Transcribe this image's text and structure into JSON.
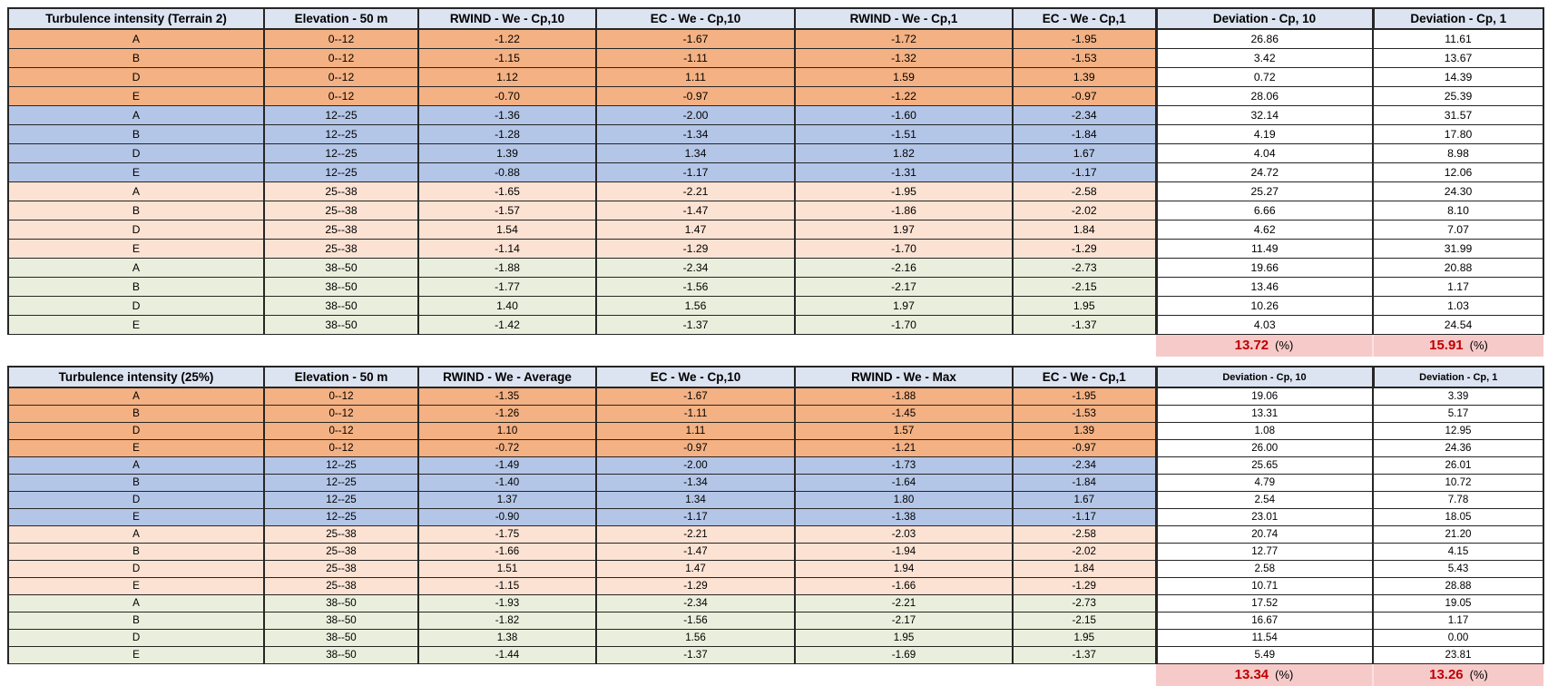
{
  "colors": {
    "header_bg": "#dce3f1",
    "group_orange": "#f4b183",
    "group_blue": "#b4c6e7",
    "group_peach": "#fbe2d3",
    "group_green": "#e9efdc",
    "total_bg": "#f7caca",
    "total_text": "#c00000",
    "border": "#262626"
  },
  "tables": [
    {
      "id": "terrain2",
      "columns": [
        "Turbulence intensity (Terrain 2)",
        "Elevation - 50 m",
        "RWIND - We - Cp,10",
        "EC - We - Cp,10",
        "RWIND - We - Cp,1",
        "EC - We - Cp,1",
        "Deviation - Cp, 10",
        "Deviation - Cp, 1"
      ],
      "rows": [
        {
          "group": "orange",
          "cells": [
            "A",
            "0--12",
            "-1.22",
            "-1.67",
            "-1.72",
            "-1.95",
            "26.86",
            "11.61"
          ]
        },
        {
          "group": "orange",
          "cells": [
            "B",
            "0--12",
            "-1.15",
            "-1.11",
            "-1.32",
            "-1.53",
            "3.42",
            "13.67"
          ]
        },
        {
          "group": "orange",
          "cells": [
            "D",
            "0--12",
            "1.12",
            "1.11",
            "1.59",
            "1.39",
            "0.72",
            "14.39"
          ]
        },
        {
          "group": "orange",
          "cells": [
            "E",
            "0--12",
            "-0.70",
            "-0.97",
            "-1.22",
            "-0.97",
            "28.06",
            "25.39"
          ]
        },
        {
          "group": "blue",
          "cells": [
            "A",
            "12--25",
            "-1.36",
            "-2.00",
            "-1.60",
            "-2.34",
            "32.14",
            "31.57"
          ]
        },
        {
          "group": "blue",
          "cells": [
            "B",
            "12--25",
            "-1.28",
            "-1.34",
            "-1.51",
            "-1.84",
            "4.19",
            "17.80"
          ]
        },
        {
          "group": "blue",
          "cells": [
            "D",
            "12--25",
            "1.39",
            "1.34",
            "1.82",
            "1.67",
            "4.04",
            "8.98"
          ]
        },
        {
          "group": "blue",
          "cells": [
            "E",
            "12--25",
            "-0.88",
            "-1.17",
            "-1.31",
            "-1.17",
            "24.72",
            "12.06"
          ]
        },
        {
          "group": "peach",
          "cells": [
            "A",
            "25--38",
            "-1.65",
            "-2.21",
            "-1.95",
            "-2.58",
            "25.27",
            "24.30"
          ]
        },
        {
          "group": "peach",
          "cells": [
            "B",
            "25--38",
            "-1.57",
            "-1.47",
            "-1.86",
            "-2.02",
            "6.66",
            "8.10"
          ]
        },
        {
          "group": "peach",
          "cells": [
            "D",
            "25--38",
            "1.54",
            "1.47",
            "1.97",
            "1.84",
            "4.62",
            "7.07"
          ]
        },
        {
          "group": "peach",
          "cells": [
            "E",
            "25--38",
            "-1.14",
            "-1.29",
            "-1.70",
            "-1.29",
            "11.49",
            "31.99"
          ]
        },
        {
          "group": "green",
          "cells": [
            "A",
            "38--50",
            "-1.88",
            "-2.34",
            "-2.16",
            "-2.73",
            "19.66",
            "20.88"
          ]
        },
        {
          "group": "green",
          "cells": [
            "B",
            "38--50",
            "-1.77",
            "-1.56",
            "-2.17",
            "-2.15",
            "13.46",
            "1.17"
          ]
        },
        {
          "group": "green",
          "cells": [
            "D",
            "38--50",
            "1.40",
            "1.56",
            "1.97",
            "1.95",
            "10.26",
            "1.03"
          ]
        },
        {
          "group": "green",
          "cells": [
            "E",
            "38--50",
            "-1.42",
            "-1.37",
            "-1.70",
            "-1.37",
            "4.03",
            "24.54"
          ]
        }
      ],
      "total": {
        "cp10": "13.72",
        "cp1": "15.91",
        "unit": "(%)"
      }
    },
    {
      "id": "turbulence25",
      "columns": [
        "Turbulence intensity (25%)",
        "Elevation - 50 m",
        "RWIND - We - Average",
        "EC - We - Cp,10",
        "RWIND - We - Max",
        "EC - We - Cp,1",
        "Deviation - Cp, 10",
        "Deviation - Cp, 1"
      ],
      "rows": [
        {
          "group": "orange",
          "cells": [
            "A",
            "0--12",
            "-1.35",
            "-1.67",
            "-1.88",
            "-1.95",
            "19.06",
            "3.39"
          ]
        },
        {
          "group": "orange",
          "cells": [
            "B",
            "0--12",
            "-1.26",
            "-1.11",
            "-1.45",
            "-1.53",
            "13.31",
            "5.17"
          ]
        },
        {
          "group": "orange",
          "cells": [
            "D",
            "0--12",
            "1.10",
            "1.11",
            "1.57",
            "1.39",
            "1.08",
            "12.95"
          ]
        },
        {
          "group": "orange",
          "cells": [
            "E",
            "0--12",
            "-0.72",
            "-0.97",
            "-1.21",
            "-0.97",
            "26.00",
            "24.36"
          ]
        },
        {
          "group": "blue",
          "cells": [
            "A",
            "12--25",
            "-1.49",
            "-2.00",
            "-1.73",
            "-2.34",
            "25.65",
            "26.01"
          ]
        },
        {
          "group": "blue",
          "cells": [
            "B",
            "12--25",
            "-1.40",
            "-1.34",
            "-1.64",
            "-1.84",
            "4.79",
            "10.72"
          ]
        },
        {
          "group": "blue",
          "cells": [
            "D",
            "12--25",
            "1.37",
            "1.34",
            "1.80",
            "1.67",
            "2.54",
            "7.78"
          ]
        },
        {
          "group": "blue",
          "cells": [
            "E",
            "12--25",
            "-0.90",
            "-1.17",
            "-1.38",
            "-1.17",
            "23.01",
            "18.05"
          ]
        },
        {
          "group": "peach",
          "cells": [
            "A",
            "25--38",
            "-1.75",
            "-2.21",
            "-2.03",
            "-2.58",
            "20.74",
            "21.20"
          ]
        },
        {
          "group": "peach",
          "cells": [
            "B",
            "25--38",
            "-1.66",
            "-1.47",
            "-1.94",
            "-2.02",
            "12.77",
            "4.15"
          ]
        },
        {
          "group": "peach",
          "cells": [
            "D",
            "25--38",
            "1.51",
            "1.47",
            "1.94",
            "1.84",
            "2.58",
            "5.43"
          ]
        },
        {
          "group": "peach",
          "cells": [
            "E",
            "25--38",
            "-1.15",
            "-1.29",
            "-1.66",
            "-1.29",
            "10.71",
            "28.88"
          ]
        },
        {
          "group": "green",
          "cells": [
            "A",
            "38--50",
            "-1.93",
            "-2.34",
            "-2.21",
            "-2.73",
            "17.52",
            "19.05"
          ]
        },
        {
          "group": "green",
          "cells": [
            "B",
            "38--50",
            "-1.82",
            "-1.56",
            "-2.17",
            "-2.15",
            "16.67",
            "1.17"
          ]
        },
        {
          "group": "green",
          "cells": [
            "D",
            "38--50",
            "1.38",
            "1.56",
            "1.95",
            "1.95",
            "11.54",
            "0.00"
          ]
        },
        {
          "group": "green",
          "cells": [
            "E",
            "38--50",
            "-1.44",
            "-1.37",
            "-1.69",
            "-1.37",
            "5.49",
            "23.81"
          ]
        }
      ],
      "total": {
        "cp10": "13.34",
        "cp1": "13.26",
        "unit": "(%)"
      }
    }
  ]
}
